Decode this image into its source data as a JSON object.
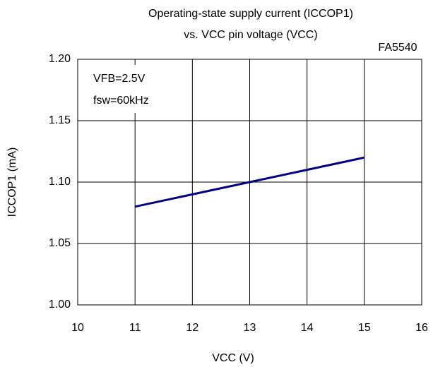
{
  "chart_data": {
    "type": "line",
    "title": [
      "Operating-state supply current (ICCOP1)",
      "vs. VCC pin voltage (VCC)"
    ],
    "annotations": [
      "FA5540",
      "VFB=2.5V",
      "fsw=60kHz"
    ],
    "x_label": "VCC (V)",
    "y_label": "ICCOP1 (mA)",
    "x": [
      11,
      12,
      13,
      14,
      15
    ],
    "series": [
      {
        "name": "ICCOP1",
        "color": "#000080",
        "values": [
          1.08,
          1.09,
          1.1,
          1.11,
          1.12
        ]
      }
    ],
    "xlim": [
      10,
      16
    ],
    "xticks": [
      10,
      11,
      12,
      13,
      14,
      15,
      16
    ],
    "ylim": [
      1,
      1.2
    ],
    "yticks": [
      {
        "value": 1,
        "label": "1.00"
      },
      1.05,
      {
        "value": 1.1,
        "label": "1.10"
      },
      1.15,
      {
        "value": 1.2,
        "label": "1.20"
      }
    ],
    "grid": true
  }
}
